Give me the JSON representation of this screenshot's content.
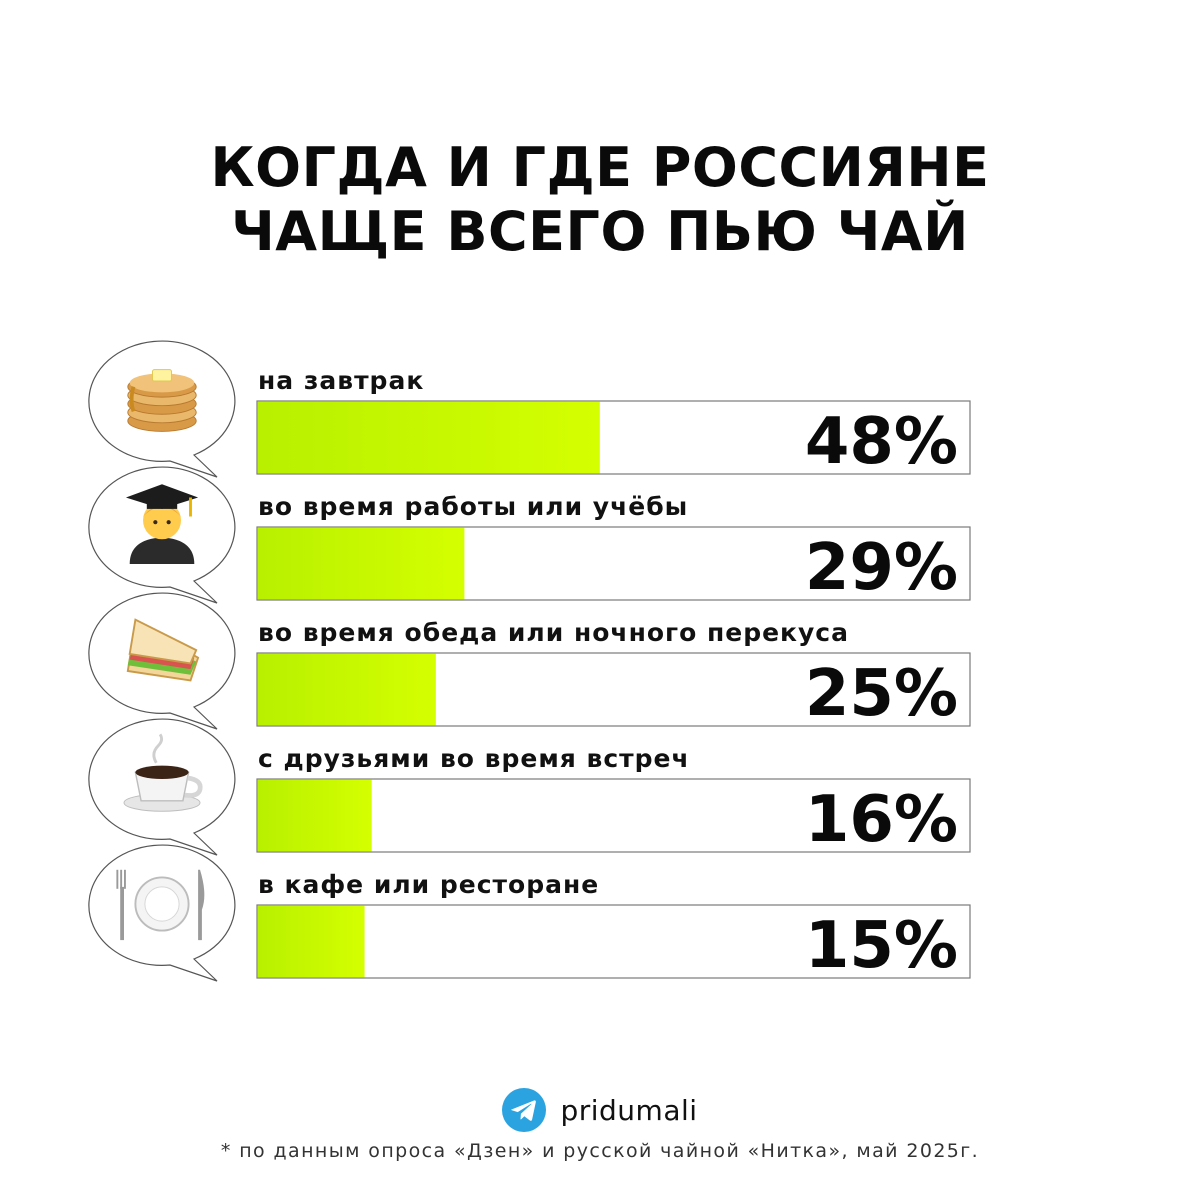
{
  "title_lines": [
    "КОГДА И ГДЕ РОССИЯНЕ",
    "ЧАЩЕ ВСЕГО ПЬЮ ЧАЙ"
  ],
  "colors": {
    "bar_start": "#b8f000",
    "bar_end": "#d4ff00",
    "bar_border": "#7a7a7a",
    "bubble_stroke": "#555555",
    "telegram": "#2aa3e0"
  },
  "chart_data": {
    "type": "bar",
    "orientation": "horizontal",
    "title": "КОГДА И ГДЕ РОССИЯНЕ ЧАЩЕ ВСЕГО ПЬЮ ЧАЙ",
    "categories": [
      "на завтрак",
      "во время работы или учёбы",
      "во время обеда или ночного перекуса",
      "с друзьями во время встреч",
      "в кафе или ресторане"
    ],
    "values": [
      48,
      29,
      25,
      16,
      15
    ],
    "value_labels": [
      "48%",
      "29%",
      "25%",
      "16%",
      "15%"
    ],
    "icons": [
      "pancakes-icon",
      "student-icon",
      "sandwich-icon",
      "coffee-cup-icon",
      "plate-cutlery-icon"
    ],
    "xlim": [
      0,
      100
    ],
    "unit": "%"
  },
  "brand": {
    "name": "pridumali",
    "icon": "telegram-icon"
  },
  "footnote": "* по данным опроса «Дзен» и русской чайной «Нитка», май 2025г."
}
